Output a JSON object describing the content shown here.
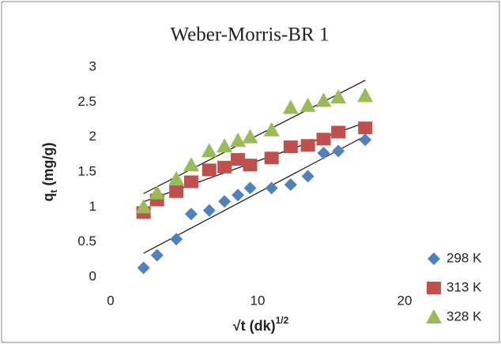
{
  "chart_data": {
    "type": "scatter",
    "title": "Weber-Morris-BR 1",
    "ylabel": {
      "main": "q",
      "sub": "t",
      "rest": " (mg/g)"
    },
    "xlabel": {
      "main": "√t  (dk)",
      "sup": "1/2"
    },
    "x": [
      2.24,
      3.16,
      4.47,
      5.48,
      6.71,
      7.75,
      8.66,
      9.49,
      10.95,
      12.25,
      13.42,
      14.49,
      15.49,
      17.32
    ],
    "series": [
      {
        "name": "298 K",
        "color": "#4f81bd",
        "marker": "diamond",
        "values": [
          0.13,
          0.31,
          0.54,
          0.9,
          0.95,
          1.08,
          1.17,
          1.27,
          1.27,
          1.32,
          1.44,
          1.77,
          1.8,
          1.96
        ]
      },
      {
        "name": "313 K",
        "color": "#c0504d",
        "marker": "square",
        "values": [
          0.92,
          1.1,
          1.22,
          1.36,
          1.53,
          1.57,
          1.68,
          1.6,
          1.7,
          1.86,
          1.88,
          1.97,
          2.07,
          2.13
        ]
      },
      {
        "name": "328 K",
        "color": "#9bbb59",
        "marker": "triangle",
        "values": [
          1.0,
          1.2,
          1.4,
          1.6,
          1.8,
          1.87,
          1.95,
          2.0,
          2.1,
          2.42,
          2.45,
          2.52,
          2.57,
          2.59
        ]
      }
    ],
    "xlim": [
      0,
      20
    ],
    "xticks": [
      0,
      10,
      20
    ],
    "ylim": [
      0,
      3
    ],
    "yticks": [
      0,
      0.5,
      1,
      1.5,
      2,
      2.5,
      3
    ],
    "trendline": true,
    "legend": "bottom-right"
  }
}
